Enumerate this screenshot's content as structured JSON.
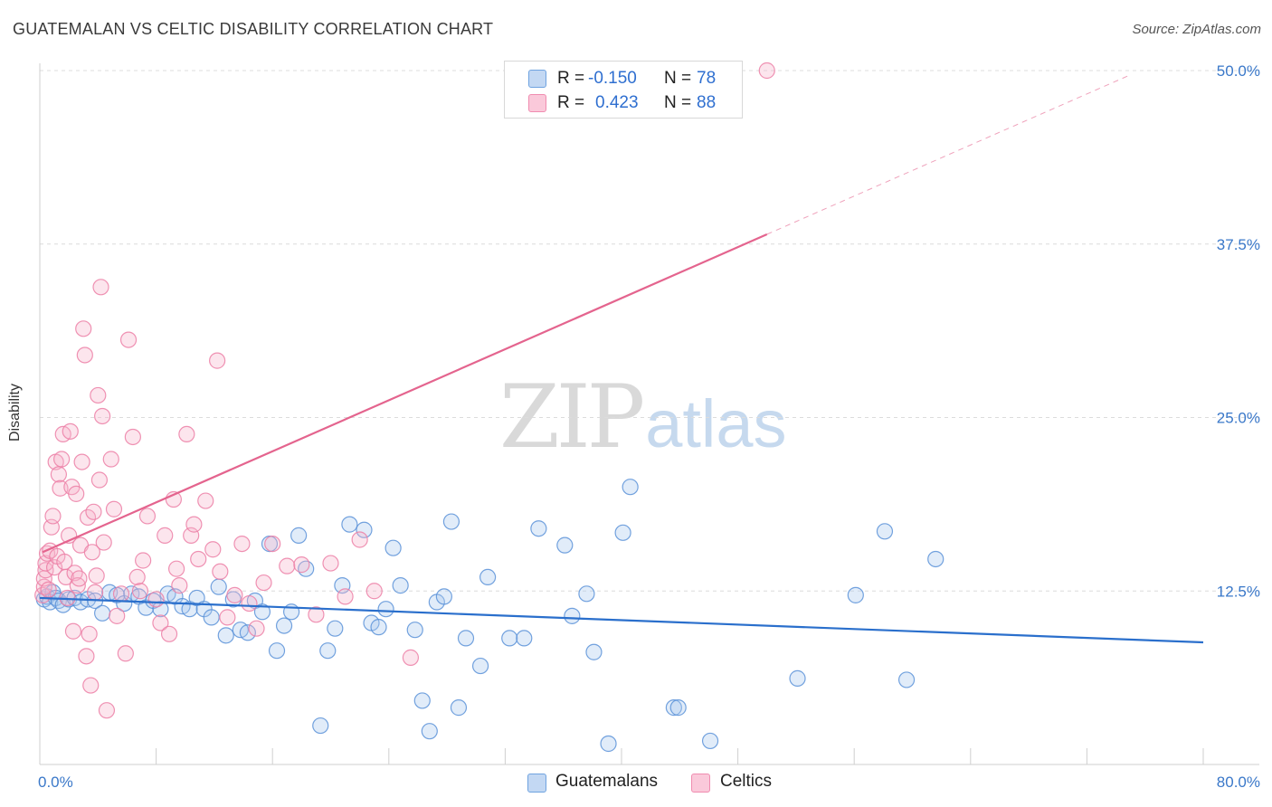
{
  "title": "GUATEMALAN VS CELTIC DISABILITY CORRELATION CHART",
  "source": "Source: ZipAtlas.com",
  "watermark": {
    "zip": "ZIP",
    "atlas": "atlas"
  },
  "colors": {
    "guatemalans": "#6fa3e0",
    "celtics": "#f08cb0",
    "guat_line": "#2a6fcc",
    "celt_line": "#e4648e",
    "tick": "#3a78c9"
  },
  "legend": {
    "rows": [
      {
        "r_label": "R =",
        "r_value": "-0.150",
        "n_label": "N =",
        "n_value": "78"
      },
      {
        "r_label": "R =",
        "r_value": "0.423",
        "n_label": "N =",
        "n_value": "88"
      }
    ]
  },
  "bottom_legend": [
    "Guatemalans",
    "Celtics"
  ],
  "chart_data": {
    "type": "scatter",
    "title": "GUATEMALAN VS CELTIC DISABILITY CORRELATION CHART",
    "xlabel": "",
    "ylabel": "Disability",
    "xlim": [
      0,
      80
    ],
    "ylim": [
      0,
      50
    ],
    "x_tick_labels": [
      "0.0%",
      "80.0%"
    ],
    "y_tick_labels": [
      "12.5%",
      "25.0%",
      "37.5%",
      "50.0%"
    ],
    "y_ticks": [
      12.5,
      25.0,
      37.5,
      50.0
    ],
    "grid": true,
    "legend_position": "top-center",
    "series": [
      {
        "name": "Guatemalans",
        "color": "#6fa3e0",
        "points": [
          [
            0.3,
            11.9
          ],
          [
            0.5,
            12.1
          ],
          [
            0.7,
            11.7
          ],
          [
            0.9,
            12.4
          ],
          [
            1.1,
            12.0
          ],
          [
            1.3,
            11.8
          ],
          [
            1.6,
            11.5
          ],
          [
            2.0,
            11.9
          ],
          [
            2.4,
            12.0
          ],
          [
            2.8,
            11.7
          ],
          [
            3.3,
            11.9
          ],
          [
            3.8,
            11.8
          ],
          [
            4.3,
            10.9
          ],
          [
            4.8,
            12.4
          ],
          [
            5.3,
            12.2
          ],
          [
            5.8,
            11.6
          ],
          [
            6.3,
            12.3
          ],
          [
            6.8,
            12.1
          ],
          [
            7.3,
            11.3
          ],
          [
            7.8,
            11.8
          ],
          [
            8.3,
            11.2
          ],
          [
            8.8,
            12.3
          ],
          [
            9.3,
            12.1
          ],
          [
            9.8,
            11.4
          ],
          [
            10.3,
            11.2
          ],
          [
            10.8,
            12.0
          ],
          [
            11.3,
            11.2
          ],
          [
            11.8,
            10.6
          ],
          [
            12.3,
            12.8
          ],
          [
            12.8,
            9.3
          ],
          [
            13.3,
            11.9
          ],
          [
            13.8,
            9.7
          ],
          [
            14.3,
            9.5
          ],
          [
            14.8,
            11.8
          ],
          [
            15.3,
            11.0
          ],
          [
            15.8,
            15.9
          ],
          [
            16.3,
            8.2
          ],
          [
            16.8,
            10.0
          ],
          [
            17.3,
            11.0
          ],
          [
            17.8,
            16.5
          ],
          [
            18.3,
            14.1
          ],
          [
            19.3,
            2.8
          ],
          [
            19.8,
            8.2
          ],
          [
            20.3,
            9.8
          ],
          [
            20.8,
            12.9
          ],
          [
            21.3,
            17.3
          ],
          [
            22.3,
            16.9
          ],
          [
            22.8,
            10.2
          ],
          [
            23.3,
            9.9
          ],
          [
            23.8,
            11.2
          ],
          [
            24.3,
            15.6
          ],
          [
            24.8,
            12.9
          ],
          [
            25.8,
            9.7
          ],
          [
            26.3,
            4.6
          ],
          [
            26.8,
            2.4
          ],
          [
            27.3,
            11.7
          ],
          [
            27.8,
            12.1
          ],
          [
            28.3,
            17.5
          ],
          [
            28.8,
            4.1
          ],
          [
            29.3,
            9.1
          ],
          [
            30.3,
            7.1
          ],
          [
            30.8,
            13.5
          ],
          [
            32.3,
            9.1
          ],
          [
            33.3,
            9.1
          ],
          [
            34.3,
            17.0
          ],
          [
            36.1,
            15.8
          ],
          [
            36.6,
            10.7
          ],
          [
            37.6,
            12.3
          ],
          [
            38.1,
            8.1
          ],
          [
            39.1,
            1.5
          ],
          [
            40.1,
            16.7
          ],
          [
            40.6,
            20.0
          ],
          [
            43.6,
            4.1
          ],
          [
            43.9,
            4.1
          ],
          [
            46.1,
            1.7
          ],
          [
            52.1,
            6.2
          ],
          [
            56.1,
            12.2
          ],
          [
            58.1,
            16.8
          ],
          [
            59.6,
            6.1
          ],
          [
            61.6,
            14.8
          ]
        ]
      },
      {
        "name": "Celtics",
        "color": "#f08cb0",
        "points": [
          [
            0.2,
            12.2
          ],
          [
            0.3,
            12.8
          ],
          [
            0.3,
            13.4
          ],
          [
            0.4,
            14.0
          ],
          [
            0.4,
            14.5
          ],
          [
            0.5,
            15.2
          ],
          [
            0.6,
            12.6
          ],
          [
            0.7,
            15.4
          ],
          [
            0.8,
            17.1
          ],
          [
            0.9,
            17.9
          ],
          [
            1.0,
            14.2
          ],
          [
            1.1,
            21.8
          ],
          [
            1.2,
            15.0
          ],
          [
            1.3,
            20.9
          ],
          [
            1.4,
            19.9
          ],
          [
            1.5,
            22.0
          ],
          [
            1.6,
            23.8
          ],
          [
            1.7,
            14.6
          ],
          [
            1.8,
            13.5
          ],
          [
            1.9,
            12.0
          ],
          [
            2.0,
            16.5
          ],
          [
            2.1,
            24.0
          ],
          [
            2.2,
            20.0
          ],
          [
            2.3,
            9.6
          ],
          [
            2.4,
            13.8
          ],
          [
            2.5,
            19.5
          ],
          [
            2.6,
            12.9
          ],
          [
            2.7,
            13.4
          ],
          [
            2.8,
            15.8
          ],
          [
            2.9,
            21.8
          ],
          [
            3.0,
            31.4
          ],
          [
            3.1,
            29.5
          ],
          [
            3.2,
            7.8
          ],
          [
            3.3,
            17.8
          ],
          [
            3.4,
            9.4
          ],
          [
            3.5,
            5.7
          ],
          [
            3.6,
            15.3
          ],
          [
            3.7,
            18.2
          ],
          [
            3.8,
            12.4
          ],
          [
            3.9,
            13.6
          ],
          [
            4.0,
            26.6
          ],
          [
            4.1,
            20.5
          ],
          [
            4.2,
            34.4
          ],
          [
            4.3,
            25.1
          ],
          [
            4.4,
            16.0
          ],
          [
            4.6,
            3.9
          ],
          [
            4.9,
            22.0
          ],
          [
            5.1,
            18.4
          ],
          [
            5.3,
            10.7
          ],
          [
            5.6,
            12.3
          ],
          [
            5.9,
            8.0
          ],
          [
            6.1,
            30.6
          ],
          [
            6.4,
            23.6
          ],
          [
            6.7,
            13.5
          ],
          [
            6.9,
            12.5
          ],
          [
            7.1,
            14.7
          ],
          [
            7.4,
            17.9
          ],
          [
            8.0,
            11.9
          ],
          [
            8.3,
            10.2
          ],
          [
            8.6,
            16.5
          ],
          [
            8.9,
            9.4
          ],
          [
            9.2,
            19.1
          ],
          [
            9.4,
            14.1
          ],
          [
            9.6,
            12.9
          ],
          [
            10.1,
            23.8
          ],
          [
            10.4,
            16.5
          ],
          [
            10.6,
            17.3
          ],
          [
            10.9,
            14.8
          ],
          [
            11.4,
            19.0
          ],
          [
            11.9,
            15.5
          ],
          [
            12.2,
            29.1
          ],
          [
            12.4,
            13.9
          ],
          [
            12.9,
            10.6
          ],
          [
            13.4,
            12.2
          ],
          [
            13.9,
            15.9
          ],
          [
            14.4,
            11.6
          ],
          [
            14.9,
            9.8
          ],
          [
            15.4,
            13.1
          ],
          [
            16.0,
            15.9
          ],
          [
            17.0,
            14.3
          ],
          [
            18.0,
            14.4
          ],
          [
            19.0,
            10.8
          ],
          [
            20.0,
            14.5
          ],
          [
            21.0,
            12.1
          ],
          [
            22.0,
            16.2
          ],
          [
            23.0,
            12.5
          ],
          [
            25.5,
            7.7
          ],
          [
            50.0,
            50.0
          ]
        ]
      }
    ],
    "trend_lines": [
      {
        "series": "Guatemalans",
        "x": [
          0,
          80
        ],
        "y": [
          12.0,
          8.8
        ]
      },
      {
        "series": "Celtics",
        "x": [
          0.2,
          50.0
        ],
        "y": [
          15.3,
          38.2
        ],
        "dashed_extension": [
          50.0,
          75.0
        ]
      }
    ]
  }
}
